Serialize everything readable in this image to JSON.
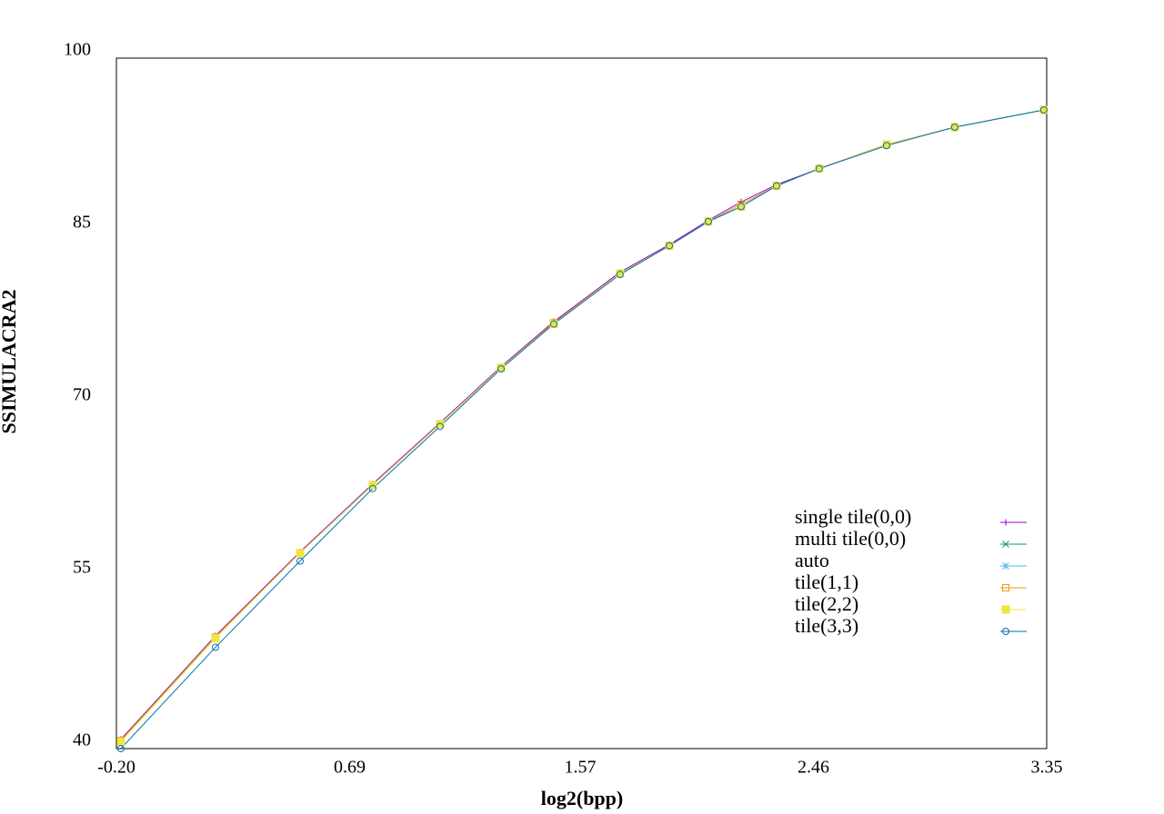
{
  "chart_data": {
    "type": "line",
    "xlabel": "log2(bpp)",
    "ylabel": "SSIMULACRA2",
    "x": [
      -0.183,
      0.178,
      0.501,
      0.778,
      1.035,
      1.268,
      1.469,
      1.722,
      1.91,
      2.059,
      2.184,
      2.319,
      2.482,
      2.739,
      2.999,
      3.339
    ],
    "series": [
      {
        "name": "single tile(0,0)",
        "color": "#9400d3",
        "values": [
          40.8,
          49.8,
          57.1,
          63.0,
          68.3,
          73.2,
          77.1,
          81.4,
          83.8,
          85.9,
          87.5,
          89.0,
          90.4,
          92.5,
          94.0,
          95.5
        ]
      },
      {
        "name": "multi tile(0,0)",
        "color": "#009e73",
        "values": [
          40.7,
          49.7,
          57.0,
          62.9,
          68.2,
          73.1,
          77.0,
          81.3,
          83.7,
          85.8,
          87.1,
          88.9,
          90.4,
          92.5,
          94.0,
          95.5
        ]
      },
      {
        "name": "auto",
        "color": "#56b4e9",
        "values": [
          40.7,
          49.7,
          57.0,
          62.9,
          68.2,
          73.1,
          77.0,
          81.3,
          83.7,
          85.8,
          87.1,
          88.9,
          90.4,
          92.5,
          94.0,
          95.5
        ]
      },
      {
        "name": "tile(1,1)",
        "color": "#e69f00",
        "values": [
          40.7,
          49.7,
          57.0,
          62.9,
          68.2,
          73.1,
          77.0,
          81.3,
          83.7,
          85.8,
          87.3,
          88.9,
          90.4,
          92.5,
          94.0,
          95.5
        ]
      },
      {
        "name": "tile(2,2)",
        "color": "#f0e442",
        "values": [
          40.6,
          49.6,
          57.0,
          62.9,
          68.2,
          73.1,
          76.9,
          81.3,
          83.7,
          85.8,
          87.1,
          88.9,
          90.4,
          92.5,
          94.0,
          95.5
        ]
      },
      {
        "name": "tile(3,3)",
        "color": "#0072b2",
        "values": [
          40.0,
          48.8,
          56.3,
          62.6,
          68.0,
          73.0,
          76.9,
          81.2,
          83.7,
          85.8,
          87.1,
          88.9,
          90.4,
          92.4,
          94.0,
          95.5
        ]
      }
    ],
    "xlim": [
      -0.2,
      3.35
    ],
    "xticks": [
      {
        "value": -0.2,
        "label": "-0.20"
      },
      0.69,
      1.57,
      2.46,
      3.35
    ],
    "ylim": [
      40,
      100
    ],
    "yticks": [
      40,
      55,
      70,
      85,
      100
    ],
    "grid": false,
    "legend": "lower right"
  }
}
